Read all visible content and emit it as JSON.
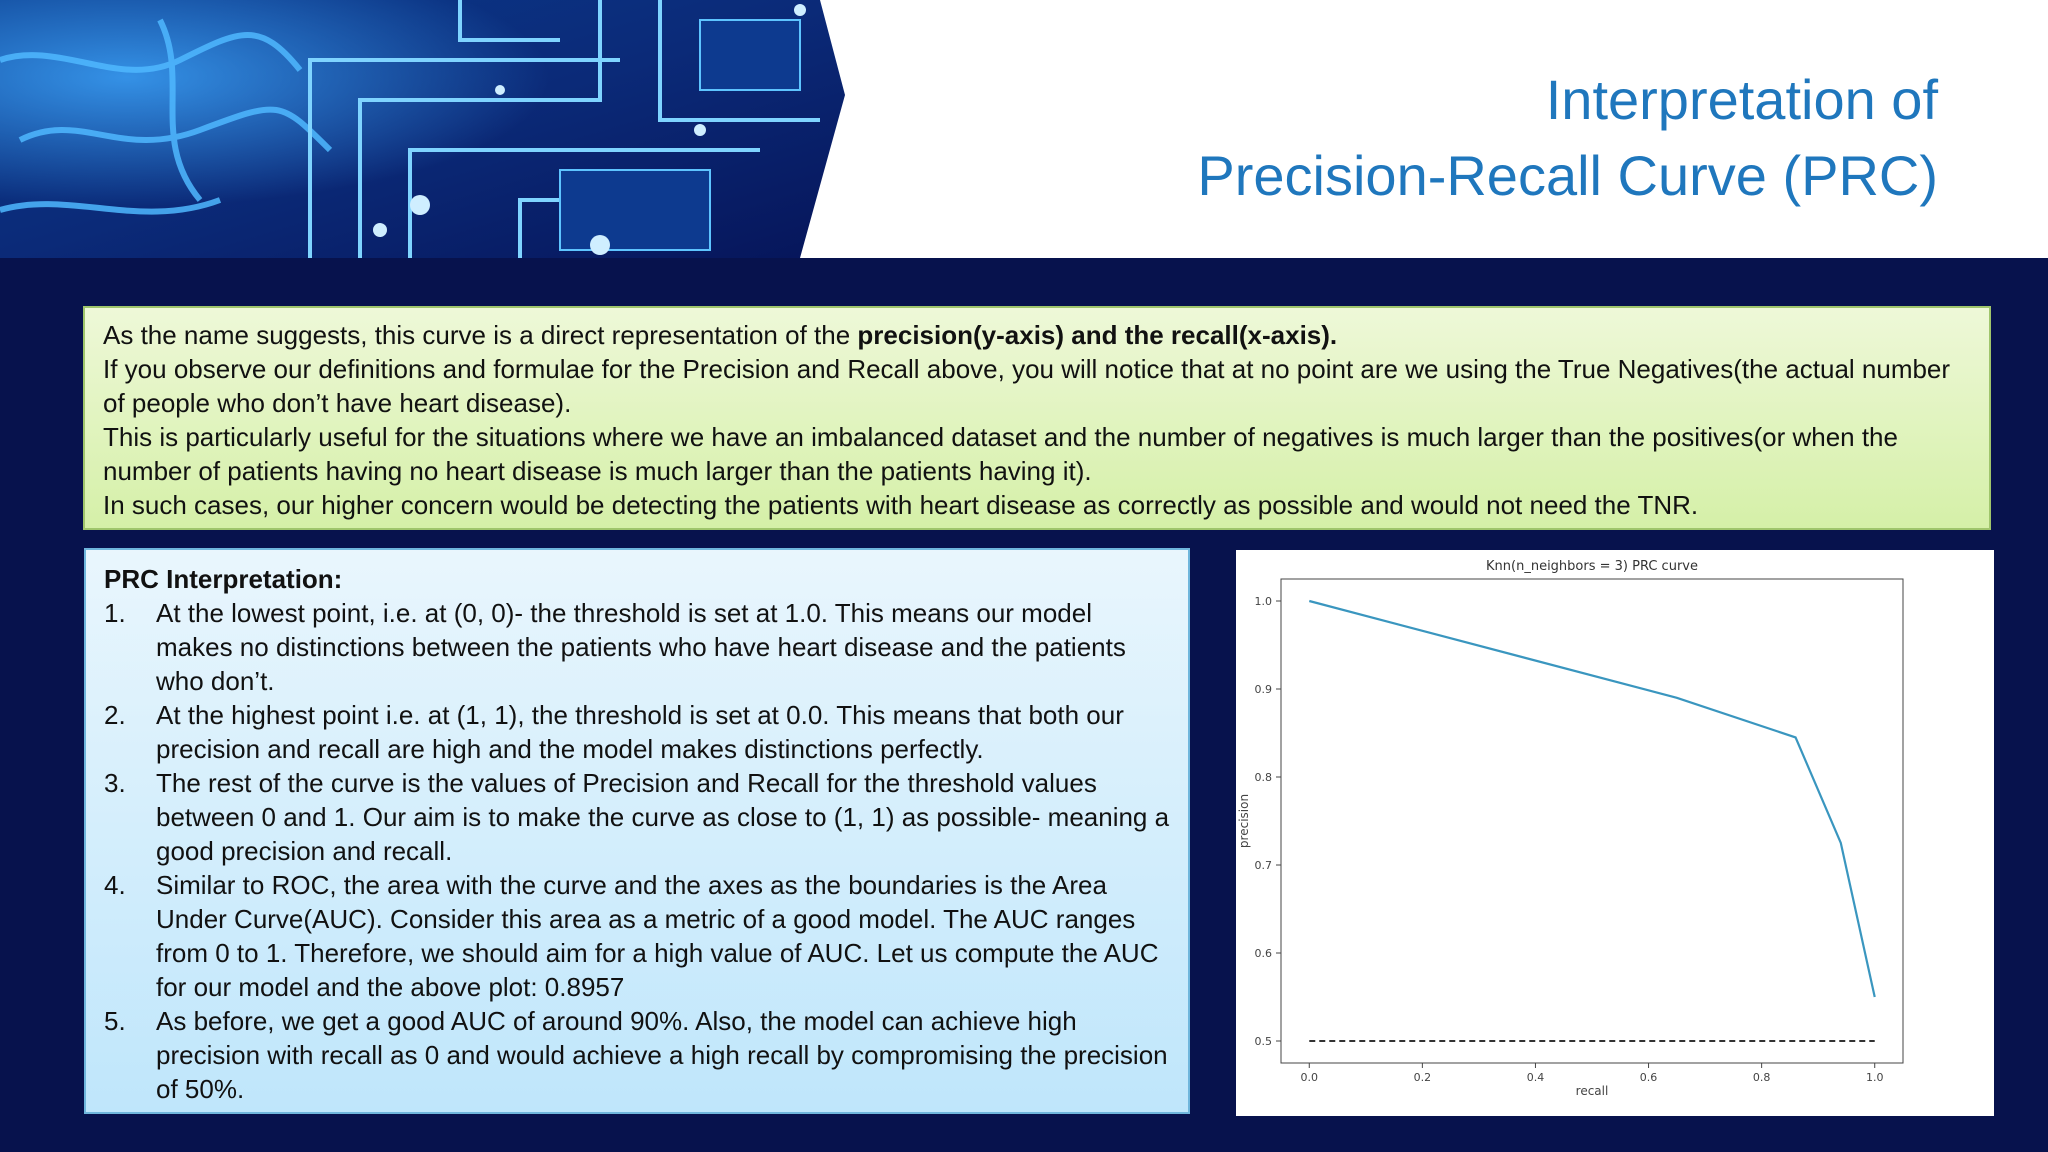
{
  "title": {
    "line1": "Interpretation of",
    "line2": "Precision-Recall Curve (PRC)"
  },
  "intro": {
    "p1_text": "As the name suggests, this curve is a direct representation of the ",
    "p1_bold": "precision(y-axis) and the recall(x-axis).",
    "p2": "If you observe our definitions and formulae for the Precision and Recall above, you will notice that at no point are we using the True Negatives(the actual number of people who don’t have heart disease).",
    "p3": "This is particularly useful for the situations where we have an imbalanced dataset and the number of negatives is much larger than the positives(or when the number of patients having no heart disease is much larger than the patients having it).",
    "p4": "In such cases, our higher concern would be detecting the patients with heart disease as correctly as possible and would not need the TNR."
  },
  "prc": {
    "heading": "PRC Interpretation:",
    "items": [
      {
        "num": "1.",
        "text": "At the lowest point, i.e. at (0, 0)- the threshold is set at 1.0. This means our model makes no distinctions between the patients who have heart disease and the patients who don’t."
      },
      {
        "num": "2.",
        "text": "At the highest point i.e. at (1, 1), the threshold is set at 0.0. This means that both our precision and recall are high and the model makes distinctions perfectly."
      },
      {
        "num": "3.",
        "text": "The rest of the curve is the values of Precision and Recall for the threshold values between 0 and 1. Our aim is to make the curve as close to (1, 1) as possible- meaning a good precision and recall."
      },
      {
        "num": "4.",
        "text": "Similar to ROC, the area with the curve and the axes as the boundaries is the Area Under Curve(AUC). Consider this area as a metric of a good model. The AUC ranges from 0 to 1. Therefore, we should aim for a high value of AUC. Let us compute the AUC for our model and the above plot: 0.8957"
      },
      {
        "num": "5.",
        "text": "As before, we get a good AUC of around 90%.  Also, the model can achieve high precision with recall as 0 and would achieve a high recall by compromising the precision of 50%."
      }
    ]
  },
  "chart_data": {
    "type": "line",
    "title": "Knn(n_neighbors = 3) PRC curve",
    "xlabel": "recall",
    "ylabel": "precision",
    "xlim": [
      -0.05,
      1.05
    ],
    "ylim": [
      0.475,
      1.025
    ],
    "xticks": [
      "0.0",
      "0.2",
      "0.4",
      "0.6",
      "0.8",
      "1.0"
    ],
    "yticks": [
      "0.5",
      "0.6",
      "0.7",
      "0.8",
      "0.9",
      "1.0"
    ],
    "grid": false,
    "series": [
      {
        "style": "solid",
        "color": "#3a96bf",
        "x": [
          0.0,
          0.65,
          0.86,
          0.94,
          1.0
        ],
        "y": [
          1.0,
          0.89,
          0.845,
          0.725,
          0.55
        ]
      },
      {
        "style": "dashed",
        "color": "#333333",
        "x": [
          0.0,
          1.0
        ],
        "y": [
          0.5,
          0.5
        ]
      }
    ]
  }
}
